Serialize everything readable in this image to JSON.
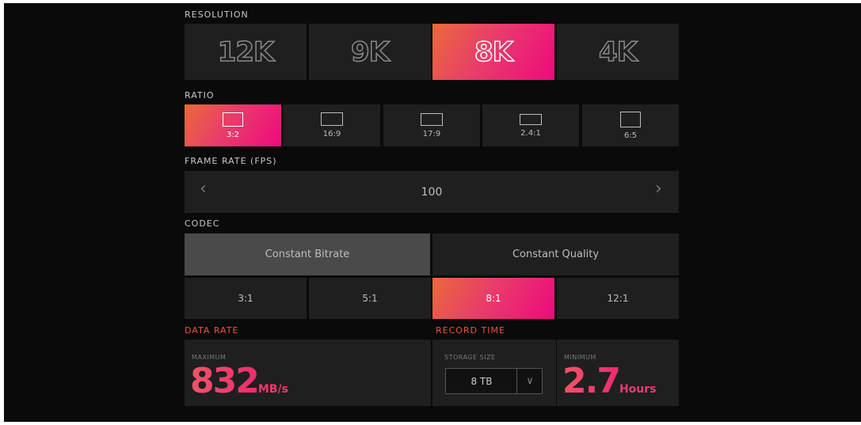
{
  "resolution": {
    "label": "RESOLUTION",
    "options": [
      {
        "label": "12K",
        "selected": false
      },
      {
        "label": "9K",
        "selected": false
      },
      {
        "label": "8K",
        "selected": true
      },
      {
        "label": "4K",
        "selected": false
      }
    ]
  },
  "ratio": {
    "label": "RATIO",
    "options": [
      {
        "label": "3:2",
        "selected": true
      },
      {
        "label": "16:9",
        "selected": false
      },
      {
        "label": "17:9",
        "selected": false
      },
      {
        "label": "2.4:1",
        "selected": false
      },
      {
        "label": "6:5",
        "selected": false
      }
    ]
  },
  "frame_rate": {
    "label": "FRAME RATE (FPS)",
    "value": "100"
  },
  "codec": {
    "label": "CODEC",
    "modes": [
      {
        "label": "Constant Bitrate",
        "selected": true
      },
      {
        "label": "Constant Quality",
        "selected": false
      }
    ],
    "options": [
      {
        "label": "3:1",
        "selected": false
      },
      {
        "label": "5:1",
        "selected": false
      },
      {
        "label": "8:1",
        "selected": true
      },
      {
        "label": "12:1",
        "selected": false
      }
    ]
  },
  "data_rate": {
    "label": "DATA RATE",
    "caption": "MAXIMUM",
    "value": "832",
    "unit": "MB/s"
  },
  "record_time": {
    "label": "RECORD TIME",
    "storage_caption": "STORAGE SIZE",
    "storage_value": "8 TB",
    "caption": "MINIMUM",
    "value": "2.7",
    "unit": "Hours"
  }
}
